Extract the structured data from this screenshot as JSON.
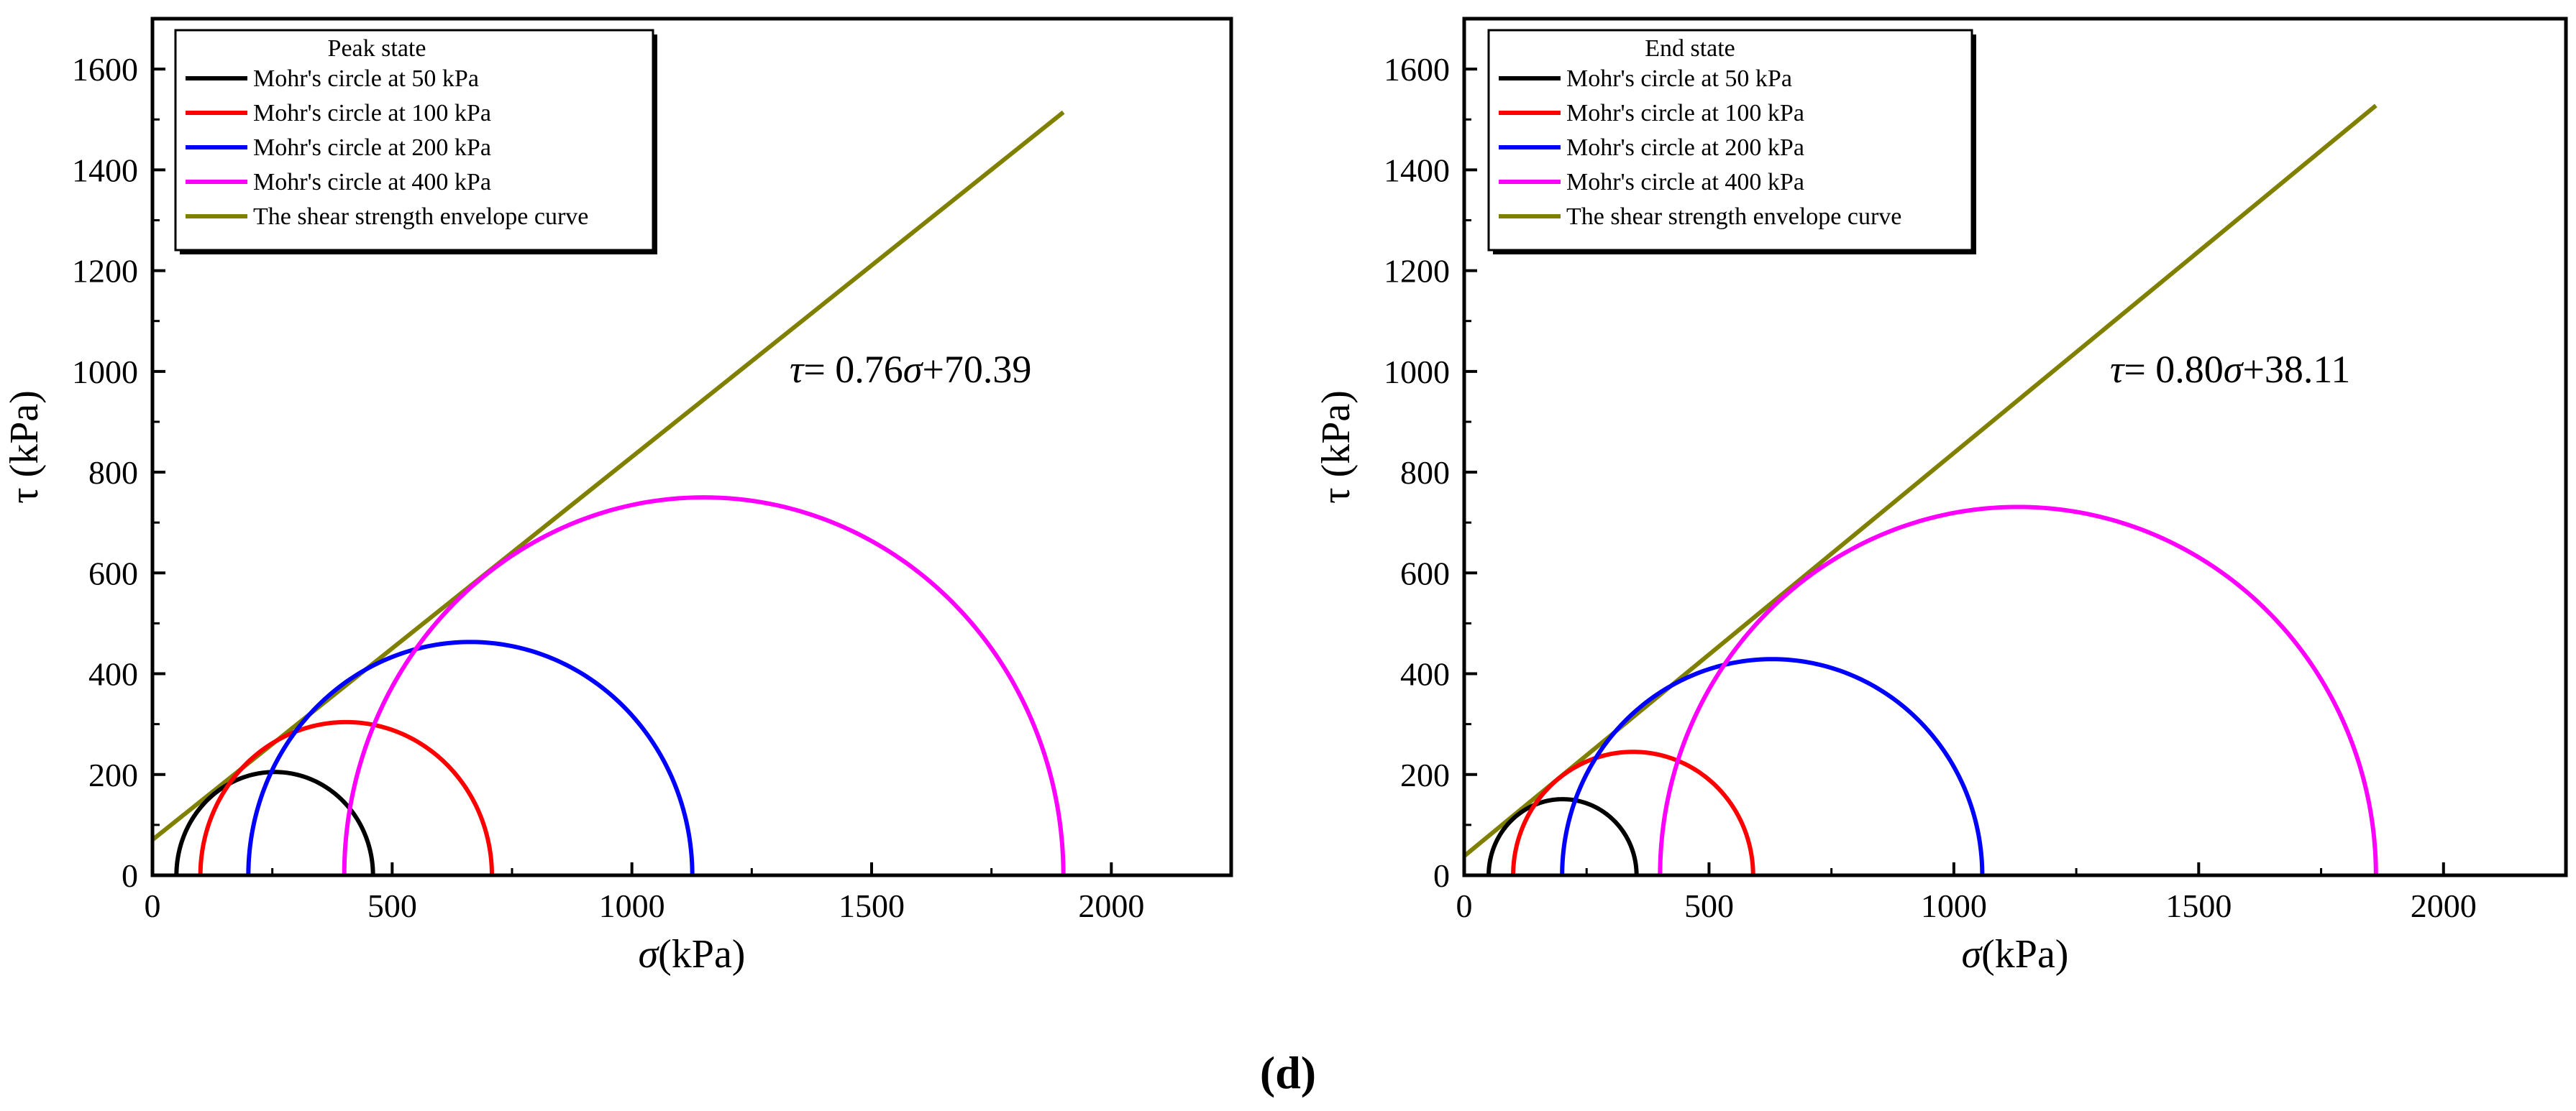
{
  "figure_caption": {
    "open": "(",
    "letter": "d",
    "close": ")"
  },
  "chart_data": [
    {
      "type": "line",
      "subtype": "mohr-coulomb",
      "title": "Peak state",
      "xlabel_symbol": "σ",
      "xlabel_unit": "(kPa)",
      "ylabel": "τ (kPa)",
      "xlim": [
        0,
        2250
      ],
      "ylim": [
        0,
        1700
      ],
      "xticks": [
        0,
        500,
        1000,
        1500,
        2000
      ],
      "yticks": [
        0,
        200,
        400,
        600,
        800,
        1000,
        1200,
        1400,
        1600
      ],
      "legend_position": "top-left",
      "circles": [
        {
          "name": "Mohr's circle at 50 kPa",
          "color": "#000000",
          "sigma3": 50,
          "sigma1": 460
        },
        {
          "name": "Mohr's circle at 100 kPa",
          "color": "#ff0000",
          "sigma3": 100,
          "sigma1": 708
        },
        {
          "name": "Mohr's circle at 200 kPa",
          "color": "#0000ff",
          "sigma3": 200,
          "sigma1": 1126
        },
        {
          "name": "Mohr's circle at 400 kPa",
          "color": "#ff00ff",
          "sigma3": 400,
          "sigma1": 1900
        }
      ],
      "envelope": {
        "name": "The shear strength envelope curve",
        "color": "#808000",
        "slope": 0.76,
        "intercept": 70.39,
        "x_range": [
          0,
          1900
        ]
      },
      "equation": {
        "lhs": "τ",
        "mid": "= 0.76",
        "var": "σ",
        "rhs": "+70.39"
      }
    },
    {
      "type": "line",
      "subtype": "mohr-coulomb",
      "title": "End state",
      "xlabel_symbol": "σ",
      "xlabel_unit": "(kPa)",
      "ylabel": "τ (kPa)",
      "xlim": [
        0,
        2250
      ],
      "ylim": [
        0,
        1700
      ],
      "xticks": [
        0,
        500,
        1000,
        1500,
        2000
      ],
      "yticks": [
        0,
        200,
        400,
        600,
        800,
        1000,
        1200,
        1400,
        1600
      ],
      "legend_position": "top-left",
      "circles": [
        {
          "name": "Mohr's circle at 50 kPa",
          "color": "#000000",
          "sigma3": 50,
          "sigma1": 352
        },
        {
          "name": "Mohr's circle at 100 kPa",
          "color": "#ff0000",
          "sigma3": 100,
          "sigma1": 590
        },
        {
          "name": "Mohr's circle at 200 kPa",
          "color": "#0000ff",
          "sigma3": 200,
          "sigma1": 1058
        },
        {
          "name": "Mohr's circle at 400 kPa",
          "color": "#ff00ff",
          "sigma3": 400,
          "sigma1": 1862
        }
      ],
      "envelope": {
        "name": "The shear strength envelope curve",
        "color": "#808000",
        "slope": 0.8,
        "intercept": 38.11,
        "x_range": [
          0,
          1862
        ]
      },
      "equation": {
        "lhs": "τ",
        "mid": "= 0.80",
        "var": "σ",
        "rhs": "+38.11"
      }
    }
  ]
}
